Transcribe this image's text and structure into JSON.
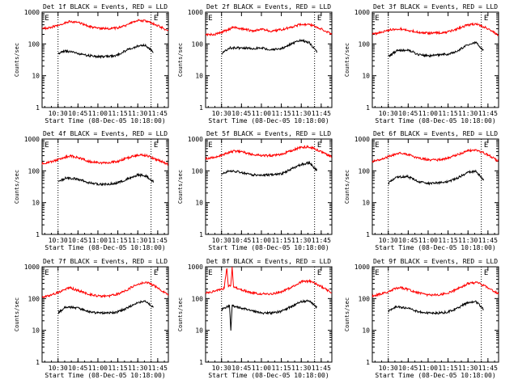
{
  "figure": {
    "x_axis_title": "Start Time (08-Dec-05 10:18:00)",
    "y_axis_title": "Counts/sec",
    "x_tick_labels": [
      "10:30",
      "10:45",
      "11:00",
      "11:15",
      "11:30",
      "11:45"
    ],
    "y_tick_labels": [
      "1",
      "10",
      "100",
      "1000"
    ],
    "marker_symbol": "E",
    "colors": {
      "events": "#000000",
      "lld": "#ff0000",
      "axes": "#000000",
      "background": "#ffffff"
    }
  },
  "chart_data": [
    {
      "type": "line",
      "title": "Det 1f BLACK = Events, RED = LLD",
      "xlabel": "Start Time (08-Dec-05 10:18:00)",
      "ylabel": "Counts/sec",
      "y_scale": "log",
      "ylim": [
        1,
        1000
      ],
      "xlim": [
        "10:18",
        "11:53"
      ],
      "grid": false,
      "vlines": [
        "10:30",
        "11:40"
      ],
      "marker_times": [
        "10:20",
        "11:42"
      ],
      "series": [
        {
          "name": "Events",
          "color": "#000000",
          "x": [
            "10:30",
            "10:36",
            "10:45",
            "10:53",
            "11:00",
            "11:08",
            "11:15",
            "11:22",
            "11:30",
            "11:36",
            "11:42"
          ],
          "y": [
            50,
            60,
            50,
            43,
            40,
            40,
            45,
            65,
            85,
            90,
            55
          ]
        },
        {
          "name": "LLD",
          "color": "#ff0000",
          "x": [
            "10:18",
            "10:25",
            "10:32",
            "10:39",
            "10:45",
            "10:53",
            "11:00",
            "11:08",
            "11:15",
            "11:22",
            "11:30",
            "11:37",
            "11:45",
            "11:53"
          ],
          "y": [
            300,
            340,
            400,
            520,
            470,
            360,
            310,
            300,
            320,
            400,
            550,
            520,
            380,
            260
          ]
        }
      ]
    },
    {
      "type": "line",
      "title": "Det 2f BLACK = Events, RED = LLD",
      "xlabel": "Start Time (08-Dec-05 10:18:00)",
      "ylabel": "Counts/sec",
      "y_scale": "log",
      "ylim": [
        1,
        1000
      ],
      "xlim": [
        "10:18",
        "11:53"
      ],
      "grid": false,
      "vlines": [
        "10:30",
        "11:40"
      ],
      "marker_times": [
        "10:20",
        "11:42"
      ],
      "series": [
        {
          "name": "Events",
          "color": "#000000",
          "x": [
            "10:30",
            "10:36",
            "10:45",
            "10:53",
            "11:00",
            "11:08",
            "11:15",
            "11:22",
            "11:30",
            "11:36",
            "11:42"
          ],
          "y": [
            50,
            75,
            75,
            72,
            75,
            65,
            70,
            100,
            130,
            110,
            55
          ]
        },
        {
          "name": "LLD",
          "color": "#ff0000",
          "x": [
            "10:18",
            "10:25",
            "10:32",
            "10:39",
            "10:45",
            "10:53",
            "11:00",
            "11:08",
            "11:15",
            "11:22",
            "11:30",
            "11:37",
            "11:45",
            "11:53"
          ],
          "y": [
            190,
            200,
            250,
            330,
            300,
            260,
            290,
            250,
            280,
            330,
            420,
            400,
            300,
            200
          ]
        }
      ]
    },
    {
      "type": "line",
      "title": "Det 3f BLACK = Events, RED = LLD",
      "xlabel": "Start Time (08-Dec-05 10:18:00)",
      "ylabel": "Counts/sec",
      "y_scale": "log",
      "ylim": [
        1,
        1000
      ],
      "xlim": [
        "10:18",
        "11:53"
      ],
      "grid": false,
      "vlines": [
        "10:30",
        "11:40"
      ],
      "marker_times": [
        "10:20",
        "11:42"
      ],
      "series": [
        {
          "name": "Events",
          "color": "#000000",
          "x": [
            "10:30",
            "10:36",
            "10:45",
            "10:53",
            "11:00",
            "11:08",
            "11:15",
            "11:22",
            "11:30",
            "11:36",
            "11:42"
          ],
          "y": [
            40,
            60,
            65,
            45,
            42,
            45,
            48,
            60,
            95,
            110,
            60
          ]
        },
        {
          "name": "LLD",
          "color": "#ff0000",
          "x": [
            "10:18",
            "10:25",
            "10:32",
            "10:39",
            "10:45",
            "10:53",
            "11:00",
            "11:08",
            "11:15",
            "11:22",
            "11:30",
            "11:37",
            "11:45",
            "11:53"
          ],
          "y": [
            200,
            230,
            280,
            300,
            270,
            230,
            220,
            220,
            240,
            300,
            400,
            420,
            300,
            190
          ]
        }
      ]
    },
    {
      "type": "line",
      "title": "Det 4f BLACK = Events, RED = LLD",
      "xlabel": "Start Time (08-Dec-05 10:18:00)",
      "ylabel": "Counts/sec",
      "y_scale": "log",
      "ylim": [
        1,
        1000
      ],
      "xlim": [
        "10:18",
        "11:53"
      ],
      "grid": false,
      "vlines": [
        "10:30",
        "11:40"
      ],
      "marker_times": [
        "10:20",
        "11:42"
      ],
      "series": [
        {
          "name": "Events",
          "color": "#000000",
          "x": [
            "10:30",
            "10:36",
            "10:45",
            "10:53",
            "11:00",
            "11:08",
            "11:15",
            "11:22",
            "11:30",
            "11:36",
            "11:42"
          ],
          "y": [
            45,
            60,
            55,
            42,
            38,
            38,
            42,
            55,
            75,
            70,
            45
          ]
        },
        {
          "name": "LLD",
          "color": "#ff0000",
          "x": [
            "10:18",
            "10:25",
            "10:32",
            "10:39",
            "10:45",
            "10:53",
            "11:00",
            "11:08",
            "11:15",
            "11:22",
            "11:30",
            "11:37",
            "11:45",
            "11:53"
          ],
          "y": [
            170,
            190,
            240,
            300,
            260,
            200,
            180,
            180,
            200,
            250,
            320,
            300,
            220,
            160
          ]
        }
      ]
    },
    {
      "type": "line",
      "title": "Det 5f BLACK = Events, RED = LLD",
      "xlabel": "Start Time (08-Dec-05 10:18:00)",
      "ylabel": "Counts/sec",
      "y_scale": "log",
      "ylim": [
        1,
        1000
      ],
      "xlim": [
        "10:18",
        "11:53"
      ],
      "grid": false,
      "vlines": [
        "10:30",
        "11:40"
      ],
      "marker_times": [
        "10:20",
        "11:42"
      ],
      "series": [
        {
          "name": "Events",
          "color": "#000000",
          "x": [
            "10:30",
            "10:36",
            "10:45",
            "10:53",
            "11:00",
            "11:08",
            "11:15",
            "11:22",
            "11:30",
            "11:36",
            "11:42"
          ],
          "y": [
            80,
            100,
            90,
            75,
            72,
            75,
            80,
            110,
            160,
            180,
            100
          ]
        },
        {
          "name": "LLD",
          "color": "#ff0000",
          "x": [
            "10:18",
            "10:25",
            "10:32",
            "10:39",
            "10:45",
            "10:53",
            "11:00",
            "11:08",
            "11:15",
            "11:22",
            "11:30",
            "11:37",
            "11:45",
            "11:53"
          ],
          "y": [
            250,
            260,
            330,
            420,
            400,
            330,
            300,
            300,
            330,
            420,
            560,
            560,
            400,
            270
          ]
        }
      ]
    },
    {
      "type": "line",
      "title": "Det 6f BLACK = Events, RED = LLD",
      "xlabel": "Start Time (08-Dec-05 10:18:00)",
      "ylabel": "Counts/sec",
      "y_scale": "log",
      "ylim": [
        1,
        1000
      ],
      "xlim": [
        "10:18",
        "11:53"
      ],
      "grid": false,
      "vlines": [
        "10:30",
        "11:40"
      ],
      "marker_times": [
        "10:20",
        "11:42"
      ],
      "series": [
        {
          "name": "Events",
          "color": "#000000",
          "x": [
            "10:30",
            "10:36",
            "10:45",
            "10:53",
            "11:00",
            "11:08",
            "11:15",
            "11:22",
            "11:30",
            "11:36",
            "11:42"
          ],
          "y": [
            40,
            65,
            65,
            45,
            40,
            42,
            45,
            60,
            90,
            95,
            50
          ]
        },
        {
          "name": "LLD",
          "color": "#ff0000",
          "x": [
            "10:18",
            "10:25",
            "10:32",
            "10:39",
            "10:45",
            "10:53",
            "11:00",
            "11:08",
            "11:15",
            "11:22",
            "11:30",
            "11:37",
            "11:45",
            "11:53"
          ],
          "y": [
            200,
            230,
            300,
            360,
            320,
            250,
            220,
            220,
            250,
            320,
            430,
            440,
            320,
            200
          ]
        }
      ]
    },
    {
      "type": "line",
      "title": "Det 7f BLACK = Events, RED = LLD",
      "xlabel": "Start Time (08-Dec-05 10:18:00)",
      "ylabel": "Counts/sec",
      "y_scale": "log",
      "ylim": [
        1,
        1000
      ],
      "xlim": [
        "10:18",
        "11:53"
      ],
      "grid": false,
      "vlines": [
        "10:30",
        "11:40"
      ],
      "marker_times": [
        "10:20",
        "11:42"
      ],
      "series": [
        {
          "name": "Events",
          "color": "#000000",
          "x": [
            "10:30",
            "10:36",
            "10:45",
            "10:53",
            "11:00",
            "11:08",
            "11:15",
            "11:22",
            "11:30",
            "11:36",
            "11:42"
          ],
          "y": [
            35,
            55,
            50,
            38,
            35,
            35,
            38,
            50,
            75,
            85,
            50
          ]
        },
        {
          "name": "LLD",
          "color": "#ff0000",
          "x": [
            "10:18",
            "10:25",
            "10:32",
            "10:39",
            "10:45",
            "10:53",
            "11:00",
            "11:08",
            "11:15",
            "11:22",
            "11:30",
            "11:37",
            "11:45",
            "11:53"
          ],
          "y": [
            110,
            130,
            170,
            220,
            180,
            140,
            120,
            120,
            140,
            190,
            290,
            320,
            220,
            130
          ]
        }
      ]
    },
    {
      "type": "line",
      "title": "Det 8f BLACK = Events, RED = LLD",
      "xlabel": "Start Time (08-Dec-05 10:18:00)",
      "ylabel": "Counts/sec",
      "y_scale": "log",
      "ylim": [
        1,
        1000
      ],
      "xlim": [
        "10:18",
        "11:53"
      ],
      "grid": false,
      "vlines": [
        "10:30",
        "11:40"
      ],
      "marker_times": [
        "10:20",
        "11:42"
      ],
      "series": [
        {
          "name": "Events",
          "color": "#000000",
          "x": [
            "10:30",
            "10:36",
            "10:37",
            "10:38",
            "10:40",
            "10:45",
            "10:53",
            "11:00",
            "11:08",
            "11:15",
            "11:22",
            "11:30",
            "11:36",
            "11:42"
          ],
          "y": [
            45,
            60,
            10,
            60,
            55,
            50,
            40,
            35,
            35,
            40,
            55,
            80,
            85,
            50
          ]
        },
        {
          "name": "LLD",
          "color": "#ff0000",
          "x": [
            "10:18",
            "10:25",
            "10:32",
            "10:34",
            "10:35",
            "10:37",
            "10:38",
            "10:39",
            "10:45",
            "10:53",
            "11:00",
            "11:08",
            "11:15",
            "11:22",
            "11:30",
            "11:37",
            "11:45",
            "11:53"
          ],
          "y": [
            150,
            170,
            210,
            1000,
            250,
            250,
            1000,
            230,
            190,
            150,
            140,
            140,
            160,
            220,
            340,
            350,
            240,
            150
          ]
        }
      ]
    },
    {
      "type": "line",
      "title": "Det 9f BLACK = Events, RED = LLD",
      "xlabel": "Start Time (08-Dec-05 10:18:00)",
      "ylabel": "Counts/sec",
      "y_scale": "log",
      "ylim": [
        1,
        1000
      ],
      "xlim": [
        "10:18",
        "11:53"
      ],
      "grid": false,
      "vlines": [
        "10:30",
        "11:40"
      ],
      "marker_times": [
        "10:20",
        "11:42"
      ],
      "series": [
        {
          "name": "Events",
          "color": "#000000",
          "x": [
            "10:30",
            "10:36",
            "10:45",
            "10:53",
            "11:00",
            "11:08",
            "11:15",
            "11:22",
            "11:30",
            "11:36",
            "11:42"
          ],
          "y": [
            40,
            55,
            50,
            38,
            35,
            35,
            38,
            50,
            75,
            80,
            45
          ]
        },
        {
          "name": "LLD",
          "color": "#ff0000",
          "x": [
            "10:18",
            "10:25",
            "10:32",
            "10:39",
            "10:45",
            "10:53",
            "11:00",
            "11:08",
            "11:15",
            "11:22",
            "11:30",
            "11:37",
            "11:45",
            "11:53"
          ],
          "y": [
            120,
            140,
            180,
            230,
            190,
            150,
            130,
            130,
            150,
            200,
            300,
            320,
            220,
            140
          ]
        }
      ]
    }
  ]
}
